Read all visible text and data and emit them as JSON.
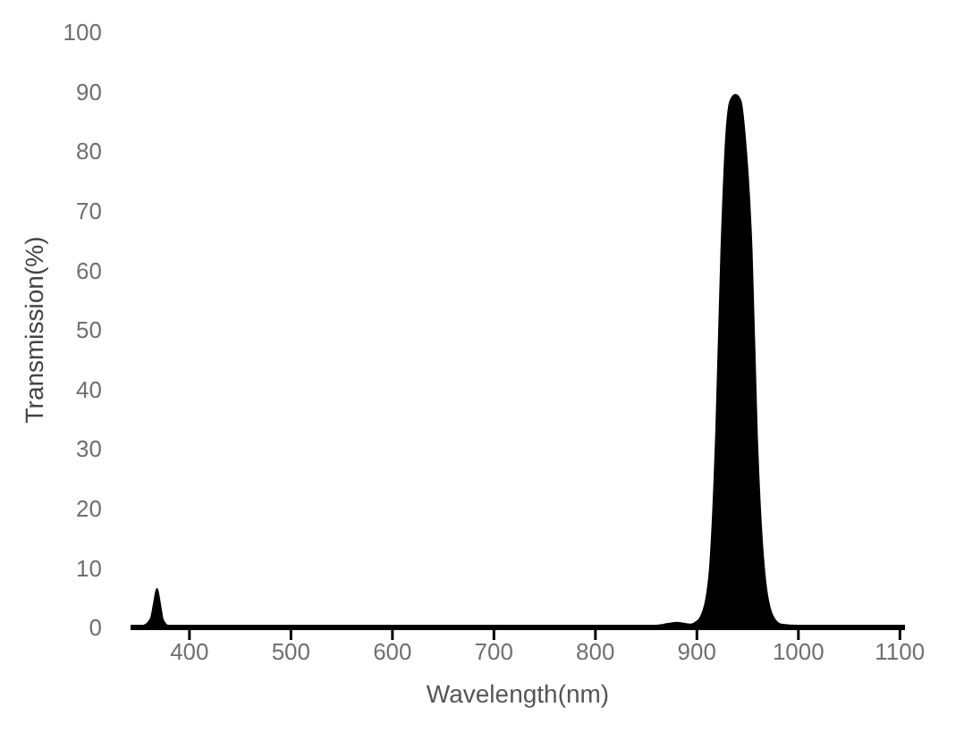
{
  "chart_data": {
    "type": "area",
    "xlabel": "Wavelength(nm)",
    "ylabel": "Transmission(%)",
    "x": [
      342,
      355,
      362,
      365,
      368,
      371,
      374,
      380,
      400,
      450,
      500,
      600,
      700,
      800,
      860,
      880,
      894,
      900,
      904,
      912,
      919,
      924,
      929,
      933,
      938,
      943,
      947,
      954,
      959,
      967,
      975,
      983,
      1000,
      1050,
      1100
    ],
    "values": [
      0,
      0.3,
      1.5,
      4,
      6.5,
      4,
      1.2,
      0.2,
      0,
      0,
      0.2,
      0.3,
      0.3,
      0.3,
      0.3,
      0.8,
      0.5,
      1,
      1.8,
      8.4,
      33,
      63,
      83,
      88.5,
      89.5,
      88.5,
      83,
      63,
      33,
      8.4,
      1.8,
      0.5,
      0.3,
      0.3,
      0
    ],
    "color": "#000000",
    "xlim": [
      342,
      1105
    ],
    "xticks": [
      400,
      500,
      600,
      700,
      800,
      900,
      1000,
      1100
    ],
    "ylim": [
      0,
      100
    ],
    "yticks": [
      0,
      10,
      20,
      30,
      40,
      50,
      60,
      70,
      80,
      90,
      100
    ]
  }
}
